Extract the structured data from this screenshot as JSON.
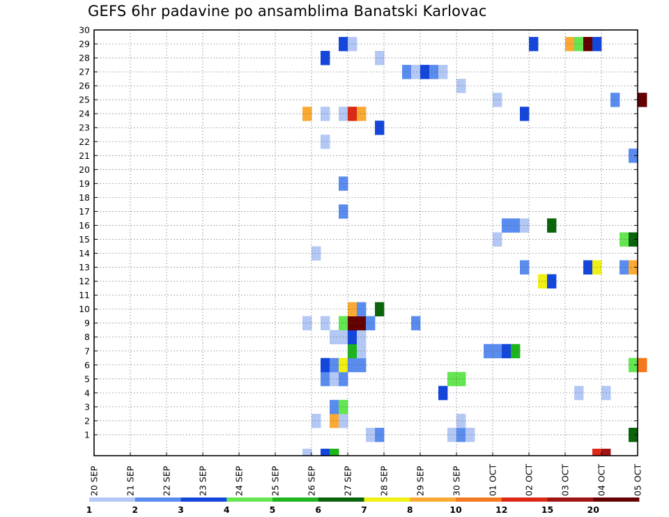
{
  "chart_data": {
    "type": "heatmap",
    "title": "GEFS 6hr padavine po ansamblima Banatski Karlovac",
    "xlabel": "",
    "ylabel": "",
    "x_ticks": [
      "20 SEP",
      "21 SEP",
      "22 SEP",
      "23 SEP",
      "24 SEP",
      "25 SEP",
      "26 SEP",
      "27 SEP",
      "28 SEP",
      "29 SEP",
      "30 SEP",
      "01 OCT",
      "02 OCT",
      "03 OCT",
      "04 OCT",
      "05 OCT"
    ],
    "y_ticks": [
      "1",
      "2",
      "3",
      "4",
      "5",
      "6",
      "7",
      "8",
      "9",
      "10",
      "11",
      "12",
      "13",
      "14",
      "15",
      "16",
      "17",
      "18",
      "19",
      "20",
      "21",
      "22",
      "23",
      "24",
      "25",
      "26",
      "27",
      "28",
      "29",
      "30"
    ],
    "y_range": [
      0,
      30
    ],
    "x_range_days": [
      0,
      15
    ],
    "steps_per_day": 4,
    "grid": true,
    "colorbar": {
      "labels": [
        "1",
        "2",
        "3",
        "4",
        "5",
        "6",
        "7",
        "8",
        "10",
        "12",
        "15",
        "20"
      ],
      "colors": [
        "#b4c8f5",
        "#5a8cf0",
        "#1446dc",
        "#64e650",
        "#1eb41e",
        "#0a640a",
        "#f0f014",
        "#faaa32",
        "#f5781e",
        "#dc2814",
        "#a01414",
        "#640000"
      ]
    },
    "cells": [
      {
        "x": 23,
        "y": 0,
        "level": 0
      },
      {
        "x": 25,
        "y": 0,
        "level": 2
      },
      {
        "x": 26,
        "y": 0,
        "level": 4
      },
      {
        "x": 55,
        "y": 0,
        "level": 9
      },
      {
        "x": 56,
        "y": 0,
        "level": 10
      },
      {
        "x": 30,
        "y": 1,
        "level": 0
      },
      {
        "x": 31,
        "y": 1,
        "level": 1
      },
      {
        "x": 39,
        "y": 1,
        "level": 0
      },
      {
        "x": 40,
        "y": 1,
        "level": 1
      },
      {
        "x": 41,
        "y": 1,
        "level": 0
      },
      {
        "x": 59,
        "y": 1,
        "level": 5
      },
      {
        "x": 24,
        "y": 2,
        "level": 0
      },
      {
        "x": 26,
        "y": 2,
        "level": 7
      },
      {
        "x": 27,
        "y": 2,
        "level": 0
      },
      {
        "x": 40,
        "y": 2,
        "level": 0
      },
      {
        "x": 26,
        "y": 3,
        "level": 1
      },
      {
        "x": 27,
        "y": 3,
        "level": 3
      },
      {
        "x": 38,
        "y": 4,
        "level": 2
      },
      {
        "x": 53,
        "y": 4,
        "level": 0
      },
      {
        "x": 56,
        "y": 4,
        "level": 0
      },
      {
        "x": 25,
        "y": 5,
        "level": 1
      },
      {
        "x": 26,
        "y": 5,
        "level": 0
      },
      {
        "x": 27,
        "y": 5,
        "level": 1
      },
      {
        "x": 39,
        "y": 5,
        "level": 3
      },
      {
        "x": 40,
        "y": 5,
        "level": 3
      },
      {
        "x": 25,
        "y": 6,
        "level": 2
      },
      {
        "x": 26,
        "y": 6,
        "level": 1
      },
      {
        "x": 27,
        "y": 6,
        "level": 6
      },
      {
        "x": 28,
        "y": 6,
        "level": 1
      },
      {
        "x": 29,
        "y": 6,
        "level": 1
      },
      {
        "x": 59,
        "y": 6,
        "level": 3
      },
      {
        "x": 60,
        "y": 6,
        "level": 8
      },
      {
        "x": 28,
        "y": 7,
        "level": 4
      },
      {
        "x": 29,
        "y": 7,
        "level": 0
      },
      {
        "x": 43,
        "y": 7,
        "level": 1
      },
      {
        "x": 44,
        "y": 7,
        "level": 1
      },
      {
        "x": 45,
        "y": 7,
        "level": 2
      },
      {
        "x": 46,
        "y": 7,
        "level": 4
      },
      {
        "x": 26,
        "y": 8,
        "level": 0
      },
      {
        "x": 27,
        "y": 8,
        "level": 0
      },
      {
        "x": 28,
        "y": 8,
        "level": 2
      },
      {
        "x": 29,
        "y": 8,
        "level": 0
      },
      {
        "x": 23,
        "y": 9,
        "level": 0
      },
      {
        "x": 25,
        "y": 9,
        "level": 0
      },
      {
        "x": 27,
        "y": 9,
        "level": 3
      },
      {
        "x": 28,
        "y": 9,
        "level": 11
      },
      {
        "x": 29,
        "y": 9,
        "level": 11
      },
      {
        "x": 30,
        "y": 9,
        "level": 1
      },
      {
        "x": 35,
        "y": 9,
        "level": 1
      },
      {
        "x": 28,
        "y": 10,
        "level": 7
      },
      {
        "x": 29,
        "y": 10,
        "level": 1
      },
      {
        "x": 31,
        "y": 10,
        "level": 5
      },
      {
        "x": 49,
        "y": 12,
        "level": 6
      },
      {
        "x": 50,
        "y": 12,
        "level": 2
      },
      {
        "x": 47,
        "y": 13,
        "level": 1
      },
      {
        "x": 54,
        "y": 13,
        "level": 2
      },
      {
        "x": 55,
        "y": 13,
        "level": 6
      },
      {
        "x": 58,
        "y": 13,
        "level": 1
      },
      {
        "x": 59,
        "y": 13,
        "level": 7
      },
      {
        "x": 24,
        "y": 14,
        "level": 0
      },
      {
        "x": 44,
        "y": 15,
        "level": 0
      },
      {
        "x": 58,
        "y": 15,
        "level": 3
      },
      {
        "x": 59,
        "y": 15,
        "level": 5
      },
      {
        "x": 45,
        "y": 16,
        "level": 1
      },
      {
        "x": 46,
        "y": 16,
        "level": 1
      },
      {
        "x": 47,
        "y": 16,
        "level": 0
      },
      {
        "x": 50,
        "y": 16,
        "level": 5
      },
      {
        "x": 27,
        "y": 17,
        "level": 1
      },
      {
        "x": 27,
        "y": 19,
        "level": 1
      },
      {
        "x": 59,
        "y": 21,
        "level": 1
      },
      {
        "x": 25,
        "y": 22,
        "level": 0
      },
      {
        "x": 31,
        "y": 23,
        "level": 2
      },
      {
        "x": 23,
        "y": 24,
        "level": 7
      },
      {
        "x": 25,
        "y": 24,
        "level": 0
      },
      {
        "x": 27,
        "y": 24,
        "level": 0
      },
      {
        "x": 28,
        "y": 24,
        "level": 9
      },
      {
        "x": 29,
        "y": 24,
        "level": 7
      },
      {
        "x": 47,
        "y": 24,
        "level": 2
      },
      {
        "x": 44,
        "y": 25,
        "level": 0
      },
      {
        "x": 57,
        "y": 25,
        "level": 1
      },
      {
        "x": 60,
        "y": 25,
        "level": 11
      },
      {
        "x": 40,
        "y": 26,
        "level": 0
      },
      {
        "x": 34,
        "y": 27,
        "level": 1
      },
      {
        "x": 35,
        "y": 27,
        "level": 0
      },
      {
        "x": 36,
        "y": 27,
        "level": 2
      },
      {
        "x": 37,
        "y": 27,
        "level": 1
      },
      {
        "x": 38,
        "y": 27,
        "level": 0
      },
      {
        "x": 25,
        "y": 28,
        "level": 2
      },
      {
        "x": 31,
        "y": 28,
        "level": 0
      },
      {
        "x": 27,
        "y": 29,
        "level": 2
      },
      {
        "x": 28,
        "y": 29,
        "level": 0
      },
      {
        "x": 48,
        "y": 29,
        "level": 2
      },
      {
        "x": 52,
        "y": 29,
        "level": 7
      },
      {
        "x": 53,
        "y": 29,
        "level": 3
      },
      {
        "x": 54,
        "y": 29,
        "level": 11
      },
      {
        "x": 55,
        "y": 29,
        "level": 2
      }
    ]
  }
}
